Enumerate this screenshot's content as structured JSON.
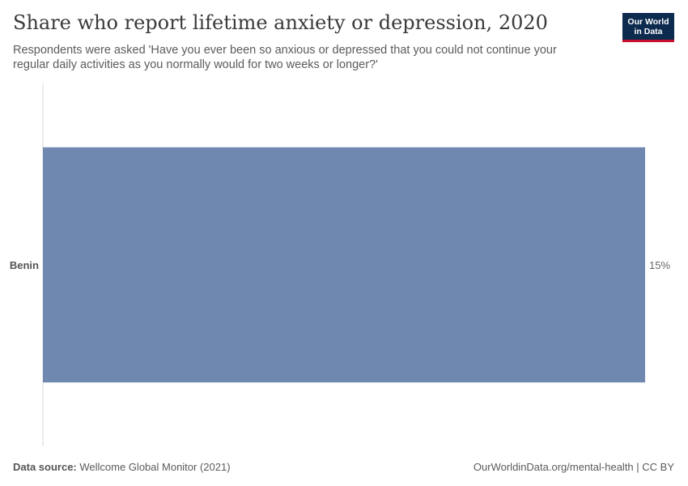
{
  "header": {
    "title": "Share who report lifetime anxiety or depression, 2020",
    "subtitle": "Respondents were asked 'Have you ever been so anxious or depressed that you could not continue your regular daily activities as you normally would for two weeks or longer?'",
    "logo_line1": "Our World",
    "logo_line2": "in Data"
  },
  "footer": {
    "source_label": "Data source:",
    "source_value": "Wellcome Global Monitor (2021)",
    "credit": "OurWorldinData.org/mental-health | CC BY"
  },
  "colors": {
    "bar": "#6f88b0",
    "axis": "#d7d7d7",
    "logo_bg": "#0d2a4f",
    "logo_accent": "#c8102e"
  },
  "chart_data": {
    "type": "bar",
    "orientation": "horizontal",
    "categories": [
      "Benin"
    ],
    "values": [
      15
    ],
    "value_labels": [
      "15%"
    ],
    "xlim": [
      0,
      15
    ],
    "unit": "%",
    "grid": false
  }
}
